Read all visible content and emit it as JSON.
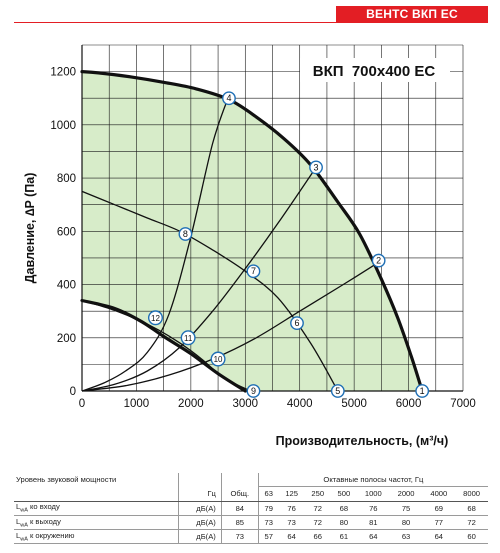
{
  "brand": {
    "label": "ВЕНТС ВКП ЕС",
    "color": "#e31e24"
  },
  "chart_data": {
    "type": "line",
    "title": "ВКП  700x400 ЕС",
    "xlabel": "Производительность, (м³/ч)",
    "ylabel": "Давление, ∆P (Па)",
    "xlim": [
      0,
      7000
    ],
    "ylim": [
      0,
      1300
    ],
    "xticks": [
      "0",
      "1000",
      "2000",
      "3000",
      "4000",
      "5000",
      "6000",
      "7000"
    ],
    "yticks": [
      "0",
      "200",
      "400",
      "600",
      "800",
      "1000",
      "1200"
    ],
    "grid": true,
    "fill_color": "#d7ecc9",
    "series": [
      {
        "role": "max-curve",
        "x": [
          0,
          300,
          900,
          1500,
          2100,
          2700,
          3200,
          3700,
          4200,
          4700,
          5100,
          5500,
          5800,
          6050,
          6250
        ],
        "y": [
          1200,
          1195,
          1180,
          1160,
          1135,
          1095,
          1030,
          950,
          850,
          710,
          590,
          420,
          275,
          130,
          0
        ]
      },
      {
        "role": "min-curve",
        "x": [
          0,
          600,
          1100,
          1500,
          2000,
          2500,
          3000
        ],
        "y": [
          340,
          310,
          260,
          205,
          140,
          65,
          0
        ]
      },
      {
        "role": "duct-line",
        "x": [
          0,
          400,
          800,
          1200,
          1600,
          2000,
          2400,
          2700
        ],
        "y": [
          0,
          30,
          75,
          145,
          290,
          580,
          930,
          1110
        ]
      },
      {
        "role": "duct-line",
        "x": [
          0,
          600,
          1200,
          1800,
          2400,
          3000,
          3600,
          4300
        ],
        "y": [
          0,
          25,
          75,
          165,
          300,
          460,
          630,
          840
        ]
      },
      {
        "role": "duct-line",
        "x": [
          0,
          800,
          1600,
          2400,
          3200,
          4000,
          4800,
          5500
        ],
        "y": [
          0,
          20,
          60,
          120,
          200,
          300,
          400,
          490
        ]
      },
      {
        "role": "speed-line",
        "x": [
          0,
          600,
          1200,
          1800,
          2400,
          3000,
          3600,
          4200,
          4700
        ],
        "y": [
          750,
          700,
          650,
          600,
          530,
          450,
          350,
          180,
          0
        ]
      },
      {
        "role": "speed-line",
        "x": [
          0,
          500,
          1000,
          1400,
          1800,
          2200,
          2600,
          3100
        ],
        "y": [
          340,
          310,
          270,
          230,
          180,
          120,
          50,
          0
        ]
      }
    ],
    "points": [
      {
        "label": "1",
        "x": 6250,
        "y": 0
      },
      {
        "label": "2",
        "x": 5450,
        "y": 490
      },
      {
        "label": "3",
        "x": 4300,
        "y": 840
      },
      {
        "label": "4",
        "x": 2700,
        "y": 1100
      },
      {
        "label": "5",
        "x": 4700,
        "y": 0
      },
      {
        "label": "6",
        "x": 3950,
        "y": 255
      },
      {
        "label": "7",
        "x": 3150,
        "y": 450
      },
      {
        "label": "8",
        "x": 1900,
        "y": 590
      },
      {
        "label": "9",
        "x": 3150,
        "y": 0
      },
      {
        "label": "10",
        "x": 2500,
        "y": 120
      },
      {
        "label": "11",
        "x": 1950,
        "y": 200
      },
      {
        "label": "12",
        "x": 1350,
        "y": 275
      }
    ]
  },
  "sound_table": {
    "title": "Уровень звуковой мощности",
    "band_header": "Октавные полосы частот, Гц",
    "unit_header": "Гц",
    "total_header": "Общ.",
    "bands": [
      "63",
      "125",
      "250",
      "500",
      "1000",
      "2000",
      "4000",
      "8000"
    ],
    "rows": [
      {
        "label_main": "L",
        "label_sub": "wA",
        "label_rest": " ко входу",
        "unit": "дБ(А)",
        "total": "84",
        "values": [
          "79",
          "76",
          "72",
          "68",
          "76",
          "75",
          "69",
          "68"
        ]
      },
      {
        "label_main": "L",
        "label_sub": "wA",
        "label_rest": " к выходу",
        "unit": "дБ(А)",
        "total": "85",
        "values": [
          "73",
          "73",
          "72",
          "80",
          "81",
          "80",
          "77",
          "72"
        ]
      },
      {
        "label_main": "L",
        "label_sub": "wA",
        "label_rest": " к окружению",
        "unit": "дБ(А)",
        "total": "73",
        "values": [
          "57",
          "64",
          "66",
          "61",
          "64",
          "63",
          "64",
          "60"
        ]
      }
    ]
  }
}
